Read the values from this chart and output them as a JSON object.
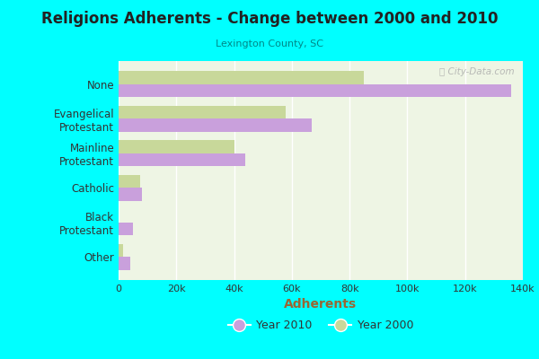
{
  "title": "Religions Adherents - Change between 2000 and 2010",
  "subtitle": "Lexington County, SC",
  "xlabel": "Adherents",
  "background_color": "#00FFFF",
  "plot_bg_color": "#eef5e4",
  "categories": [
    "None",
    "Evangelical\nProtestant",
    "Mainline\nProtestant",
    "Catholic",
    "Black\nProtestant",
    "Other"
  ],
  "values_2010": [
    136000,
    67000,
    44000,
    8000,
    5000,
    4000
  ],
  "values_2000": [
    85000,
    58000,
    40000,
    7500,
    0,
    1500
  ],
  "color_2010": "#c9a0dc",
  "color_2000": "#c8d89a",
  "xlim": [
    0,
    140000
  ],
  "xticks": [
    0,
    20000,
    40000,
    60000,
    80000,
    100000,
    120000,
    140000
  ],
  "xtick_labels": [
    "0",
    "20k",
    "40k",
    "60k",
    "80k",
    "100k",
    "120k",
    "140k"
  ],
  "legend_label_2010": "Year 2010",
  "legend_label_2000": "Year 2000",
  "watermark": "ⓘ City-Data.com",
  "xlabel_color": "#996633",
  "subtitle_color": "#008888",
  "title_color": "#222222"
}
